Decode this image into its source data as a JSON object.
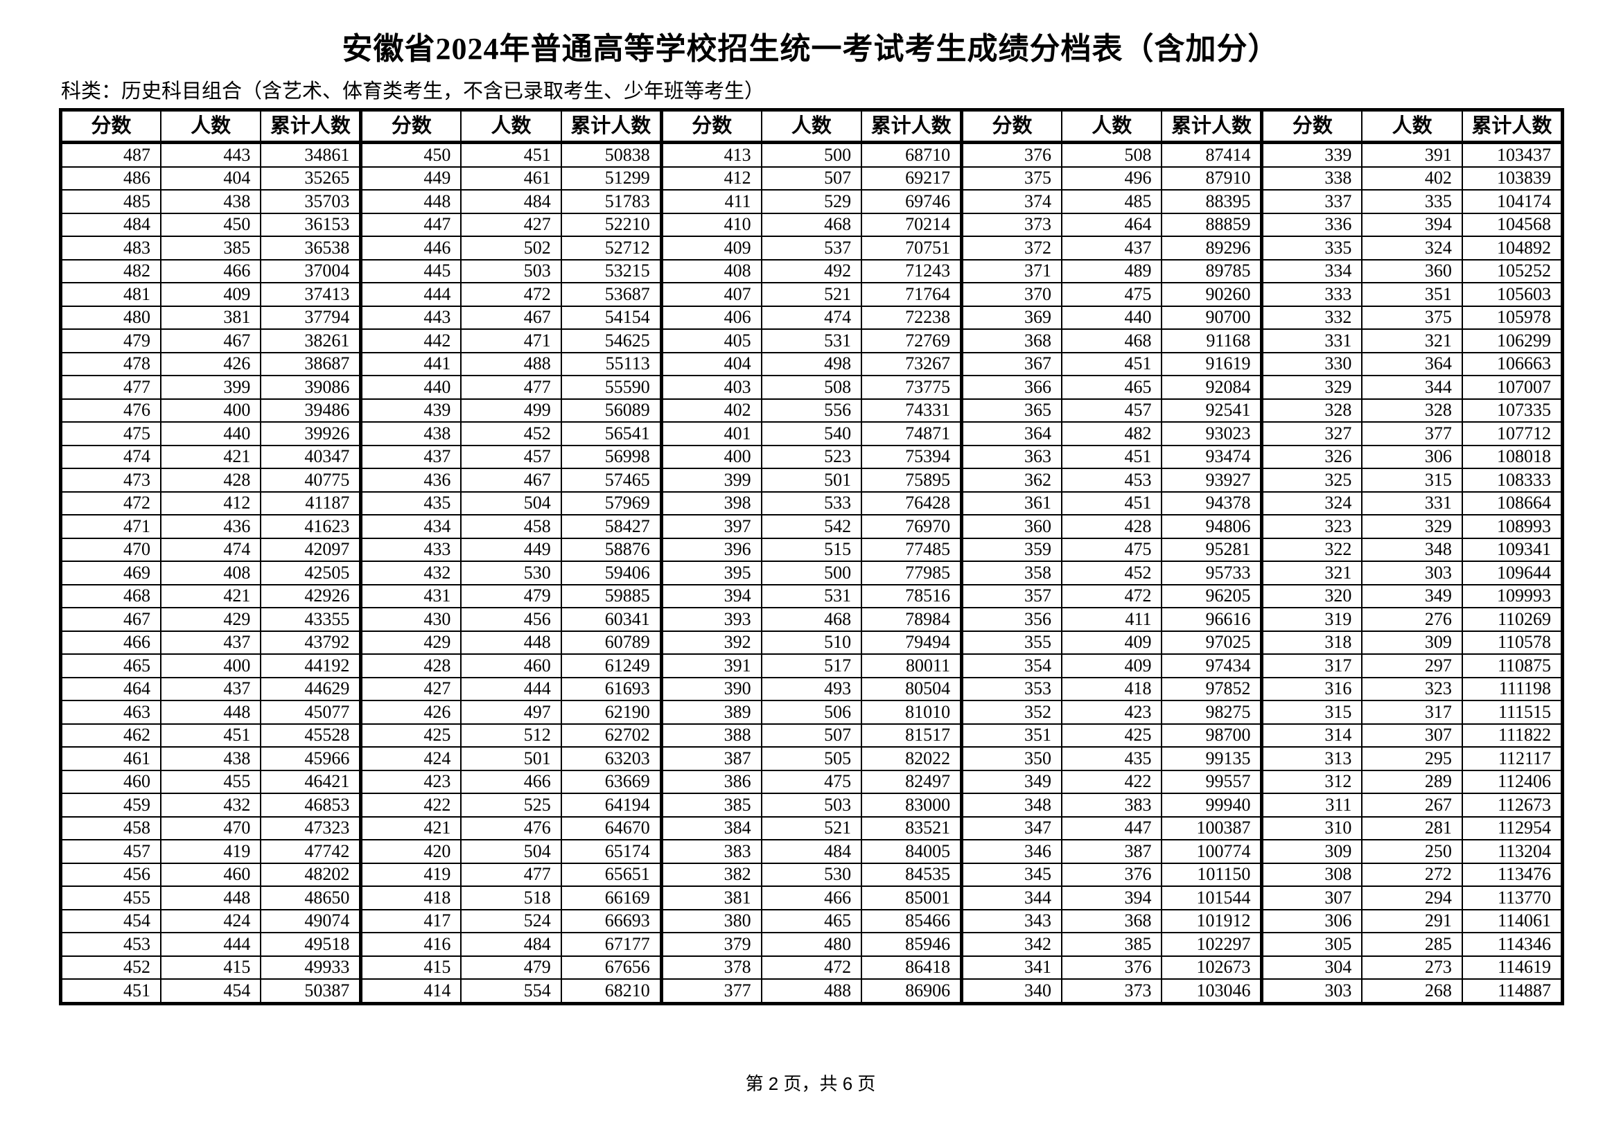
{
  "title": "安徽省2024年普通高等学校招生统一考试考生成绩分档表（含加分）",
  "subtitle": "科类：历史科目组合（含艺术、体育类考生，不含已录取考生、少年班等考生）",
  "footer": "第 2 页，共 6 页",
  "table": {
    "column_headers": [
      "分数",
      "人数",
      "累计人数"
    ],
    "groups": [
      {
        "rows": [
          [
            487,
            443,
            34861
          ],
          [
            486,
            404,
            35265
          ],
          [
            485,
            438,
            35703
          ],
          [
            484,
            450,
            36153
          ],
          [
            483,
            385,
            36538
          ],
          [
            482,
            466,
            37004
          ],
          [
            481,
            409,
            37413
          ],
          [
            480,
            381,
            37794
          ],
          [
            479,
            467,
            38261
          ],
          [
            478,
            426,
            38687
          ],
          [
            477,
            399,
            39086
          ],
          [
            476,
            400,
            39486
          ],
          [
            475,
            440,
            39926
          ],
          [
            474,
            421,
            40347
          ],
          [
            473,
            428,
            40775
          ],
          [
            472,
            412,
            41187
          ],
          [
            471,
            436,
            41623
          ],
          [
            470,
            474,
            42097
          ],
          [
            469,
            408,
            42505
          ],
          [
            468,
            421,
            42926
          ],
          [
            467,
            429,
            43355
          ],
          [
            466,
            437,
            43792
          ],
          [
            465,
            400,
            44192
          ],
          [
            464,
            437,
            44629
          ],
          [
            463,
            448,
            45077
          ],
          [
            462,
            451,
            45528
          ],
          [
            461,
            438,
            45966
          ],
          [
            460,
            455,
            46421
          ],
          [
            459,
            432,
            46853
          ],
          [
            458,
            470,
            47323
          ],
          [
            457,
            419,
            47742
          ],
          [
            456,
            460,
            48202
          ],
          [
            455,
            448,
            48650
          ],
          [
            454,
            424,
            49074
          ],
          [
            453,
            444,
            49518
          ],
          [
            452,
            415,
            49933
          ],
          [
            451,
            454,
            50387
          ]
        ]
      },
      {
        "rows": [
          [
            450,
            451,
            50838
          ],
          [
            449,
            461,
            51299
          ],
          [
            448,
            484,
            51783
          ],
          [
            447,
            427,
            52210
          ],
          [
            446,
            502,
            52712
          ],
          [
            445,
            503,
            53215
          ],
          [
            444,
            472,
            53687
          ],
          [
            443,
            467,
            54154
          ],
          [
            442,
            471,
            54625
          ],
          [
            441,
            488,
            55113
          ],
          [
            440,
            477,
            55590
          ],
          [
            439,
            499,
            56089
          ],
          [
            438,
            452,
            56541
          ],
          [
            437,
            457,
            56998
          ],
          [
            436,
            467,
            57465
          ],
          [
            435,
            504,
            57969
          ],
          [
            434,
            458,
            58427
          ],
          [
            433,
            449,
            58876
          ],
          [
            432,
            530,
            59406
          ],
          [
            431,
            479,
            59885
          ],
          [
            430,
            456,
            60341
          ],
          [
            429,
            448,
            60789
          ],
          [
            428,
            460,
            61249
          ],
          [
            427,
            444,
            61693
          ],
          [
            426,
            497,
            62190
          ],
          [
            425,
            512,
            62702
          ],
          [
            424,
            501,
            63203
          ],
          [
            423,
            466,
            63669
          ],
          [
            422,
            525,
            64194
          ],
          [
            421,
            476,
            64670
          ],
          [
            420,
            504,
            65174
          ],
          [
            419,
            477,
            65651
          ],
          [
            418,
            518,
            66169
          ],
          [
            417,
            524,
            66693
          ],
          [
            416,
            484,
            67177
          ],
          [
            415,
            479,
            67656
          ],
          [
            414,
            554,
            68210
          ]
        ]
      },
      {
        "rows": [
          [
            413,
            500,
            68710
          ],
          [
            412,
            507,
            69217
          ],
          [
            411,
            529,
            69746
          ],
          [
            410,
            468,
            70214
          ],
          [
            409,
            537,
            70751
          ],
          [
            408,
            492,
            71243
          ],
          [
            407,
            521,
            71764
          ],
          [
            406,
            474,
            72238
          ],
          [
            405,
            531,
            72769
          ],
          [
            404,
            498,
            73267
          ],
          [
            403,
            508,
            73775
          ],
          [
            402,
            556,
            74331
          ],
          [
            401,
            540,
            74871
          ],
          [
            400,
            523,
            75394
          ],
          [
            399,
            501,
            75895
          ],
          [
            398,
            533,
            76428
          ],
          [
            397,
            542,
            76970
          ],
          [
            396,
            515,
            77485
          ],
          [
            395,
            500,
            77985
          ],
          [
            394,
            531,
            78516
          ],
          [
            393,
            468,
            78984
          ],
          [
            392,
            510,
            79494
          ],
          [
            391,
            517,
            80011
          ],
          [
            390,
            493,
            80504
          ],
          [
            389,
            506,
            81010
          ],
          [
            388,
            507,
            81517
          ],
          [
            387,
            505,
            82022
          ],
          [
            386,
            475,
            82497
          ],
          [
            385,
            503,
            83000
          ],
          [
            384,
            521,
            83521
          ],
          [
            383,
            484,
            84005
          ],
          [
            382,
            530,
            84535
          ],
          [
            381,
            466,
            85001
          ],
          [
            380,
            465,
            85466
          ],
          [
            379,
            480,
            85946
          ],
          [
            378,
            472,
            86418
          ],
          [
            377,
            488,
            86906
          ]
        ]
      },
      {
        "rows": [
          [
            376,
            508,
            87414
          ],
          [
            375,
            496,
            87910
          ],
          [
            374,
            485,
            88395
          ],
          [
            373,
            464,
            88859
          ],
          [
            372,
            437,
            89296
          ],
          [
            371,
            489,
            89785
          ],
          [
            370,
            475,
            90260
          ],
          [
            369,
            440,
            90700
          ],
          [
            368,
            468,
            91168
          ],
          [
            367,
            451,
            91619
          ],
          [
            366,
            465,
            92084
          ],
          [
            365,
            457,
            92541
          ],
          [
            364,
            482,
            93023
          ],
          [
            363,
            451,
            93474
          ],
          [
            362,
            453,
            93927
          ],
          [
            361,
            451,
            94378
          ],
          [
            360,
            428,
            94806
          ],
          [
            359,
            475,
            95281
          ],
          [
            358,
            452,
            95733
          ],
          [
            357,
            472,
            96205
          ],
          [
            356,
            411,
            96616
          ],
          [
            355,
            409,
            97025
          ],
          [
            354,
            409,
            97434
          ],
          [
            353,
            418,
            97852
          ],
          [
            352,
            423,
            98275
          ],
          [
            351,
            425,
            98700
          ],
          [
            350,
            435,
            99135
          ],
          [
            349,
            422,
            99557
          ],
          [
            348,
            383,
            99940
          ],
          [
            347,
            447,
            100387
          ],
          [
            346,
            387,
            100774
          ],
          [
            345,
            376,
            101150
          ],
          [
            344,
            394,
            101544
          ],
          [
            343,
            368,
            101912
          ],
          [
            342,
            385,
            102297
          ],
          [
            341,
            376,
            102673
          ],
          [
            340,
            373,
            103046
          ]
        ]
      },
      {
        "rows": [
          [
            339,
            391,
            103437
          ],
          [
            338,
            402,
            103839
          ],
          [
            337,
            335,
            104174
          ],
          [
            336,
            394,
            104568
          ],
          [
            335,
            324,
            104892
          ],
          [
            334,
            360,
            105252
          ],
          [
            333,
            351,
            105603
          ],
          [
            332,
            375,
            105978
          ],
          [
            331,
            321,
            106299
          ],
          [
            330,
            364,
            106663
          ],
          [
            329,
            344,
            107007
          ],
          [
            328,
            328,
            107335
          ],
          [
            327,
            377,
            107712
          ],
          [
            326,
            306,
            108018
          ],
          [
            325,
            315,
            108333
          ],
          [
            324,
            331,
            108664
          ],
          [
            323,
            329,
            108993
          ],
          [
            322,
            348,
            109341
          ],
          [
            321,
            303,
            109644
          ],
          [
            320,
            349,
            109993
          ],
          [
            319,
            276,
            110269
          ],
          [
            318,
            309,
            110578
          ],
          [
            317,
            297,
            110875
          ],
          [
            316,
            323,
            111198
          ],
          [
            315,
            317,
            111515
          ],
          [
            314,
            307,
            111822
          ],
          [
            313,
            295,
            112117
          ],
          [
            312,
            289,
            112406
          ],
          [
            311,
            267,
            112673
          ],
          [
            310,
            281,
            112954
          ],
          [
            309,
            250,
            113204
          ],
          [
            308,
            272,
            113476
          ],
          [
            307,
            294,
            113770
          ],
          [
            306,
            291,
            114061
          ],
          [
            305,
            285,
            114346
          ],
          [
            304,
            273,
            114619
          ],
          [
            303,
            268,
            114887
          ]
        ]
      }
    ]
  }
}
